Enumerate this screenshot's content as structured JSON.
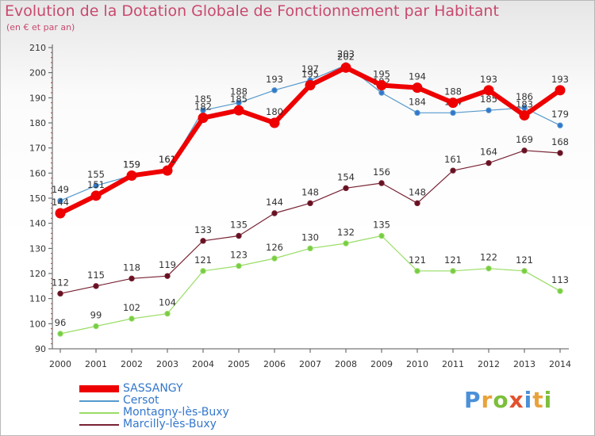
{
  "header": {
    "title": "Evolution de la Dotation Globale de Fonctionnement par Habitant",
    "subtitle": "(en € et par an)"
  },
  "logo": {
    "text": "Proxiti"
  },
  "chart_data": {
    "type": "line",
    "title": "Evolution de la Dotation Globale de Fonctionnement par Habitant",
    "subtitle": "(en € et par an)",
    "xlabel": "",
    "ylabel": "",
    "ylim": [
      90,
      210
    ],
    "yticks": [
      90,
      100,
      110,
      120,
      130,
      140,
      150,
      160,
      170,
      180,
      190,
      200,
      210
    ],
    "grid": false,
    "legend_position": "bottom-left",
    "categories": [
      "2000",
      "2001",
      "2002",
      "2003",
      "2004",
      "2005",
      "2006",
      "2007",
      "2008",
      "2009",
      "2010",
      "2011",
      "2012",
      "2013",
      "2014"
    ],
    "series": [
      {
        "name": "Montagny-lès-Buxy",
        "color": "#99dd66",
        "dot": "#77cc44",
        "width": 1.2,
        "values": [
          96,
          99,
          102,
          104,
          121,
          123,
          126,
          130,
          132,
          135,
          121,
          121,
          122,
          121,
          113
        ]
      },
      {
        "name": "Marcilly-lès-Buxy",
        "color": "#772233",
        "dot": "#661122",
        "width": 1.2,
        "values": [
          112,
          115,
          118,
          119,
          133,
          135,
          144,
          148,
          154,
          156,
          148,
          161,
          164,
          169,
          168
        ]
      },
      {
        "name": "Cersot",
        "color": "#5599cc",
        "dot": "#3377cc",
        "width": 1.2,
        "values": [
          149,
          155,
          159,
          161,
          185,
          188,
          193,
          197,
          203,
          192,
          184,
          184,
          185,
          186,
          179
        ]
      },
      {
        "name": "SASSANGY",
        "color": "#ee0000",
        "dot": "#ee0000",
        "width": 6,
        "values": [
          144,
          151,
          159,
          161,
          182,
          185,
          180,
          195,
          202,
          195,
          194,
          188,
          193,
          183,
          193
        ]
      }
    ],
    "legend_order": [
      "SASSANGY",
      "Cersot",
      "Montagny-lès-Buxy",
      "Marcilly-lès-Buxy"
    ]
  }
}
